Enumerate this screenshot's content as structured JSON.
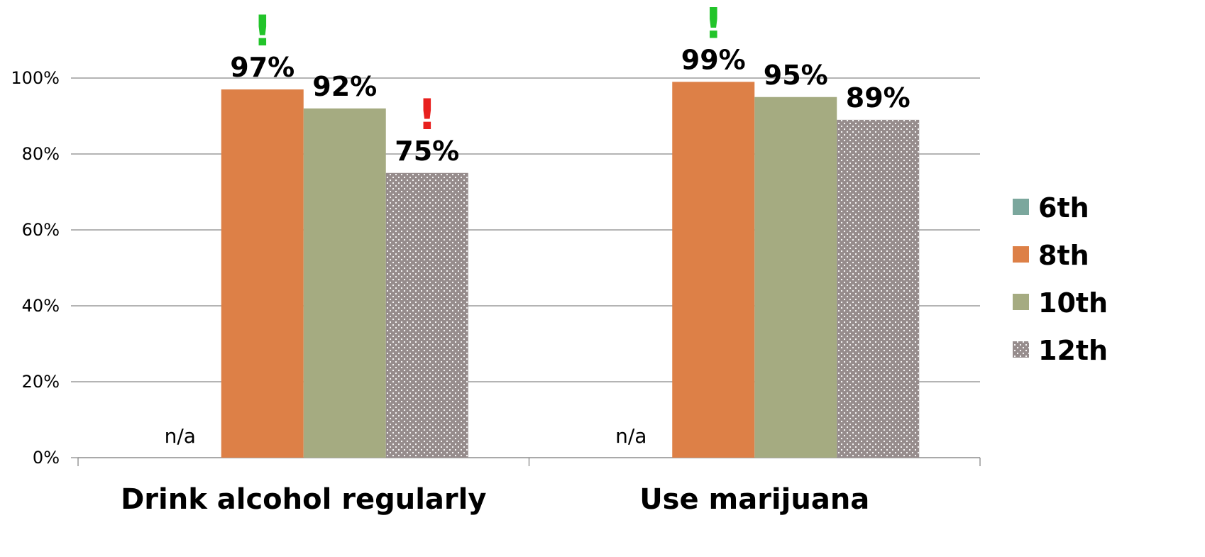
{
  "chart_data": {
    "type": "bar",
    "categories": [
      "Drink alcohol regularly",
      "Use marijuana"
    ],
    "series": [
      {
        "name": "6th",
        "values": [
          null,
          null
        ],
        "color": "#7BA79D",
        "pattern": "solid",
        "missing_label": "n/a"
      },
      {
        "name": "8th",
        "values": [
          97,
          99
        ],
        "color": "#DD8047",
        "pattern": "solid"
      },
      {
        "name": "10th",
        "values": [
          92,
          95
        ],
        "color": "#A5AB81",
        "pattern": "solid"
      },
      {
        "name": "12th",
        "values": [
          75,
          89
        ],
        "color": "#968C8C",
        "pattern": "dotted"
      }
    ],
    "data_labels": [
      {
        "category": 0,
        "series": 1,
        "text": "97%"
      },
      {
        "category": 0,
        "series": 2,
        "text": "92%"
      },
      {
        "category": 0,
        "series": 3,
        "text": "75%"
      },
      {
        "category": 1,
        "series": 1,
        "text": "99%"
      },
      {
        "category": 1,
        "series": 2,
        "text": "95%"
      },
      {
        "category": 1,
        "series": 3,
        "text": "89%"
      }
    ],
    "annotations": [
      {
        "category": 0,
        "series": 1,
        "text": "!",
        "color": "#22C42A"
      },
      {
        "category": 0,
        "series": 3,
        "text": "!",
        "color": "#E8201E"
      },
      {
        "category": 1,
        "series": 1,
        "text": "!",
        "color": "#22C42A"
      }
    ],
    "yticks": [
      "0%",
      "20%",
      "40%",
      "60%",
      "80%",
      "100%"
    ],
    "ylim": [
      0,
      100
    ],
    "ystep": 20,
    "grid": true,
    "legend_position": "right",
    "title": "",
    "xlabel": "",
    "ylabel": ""
  }
}
